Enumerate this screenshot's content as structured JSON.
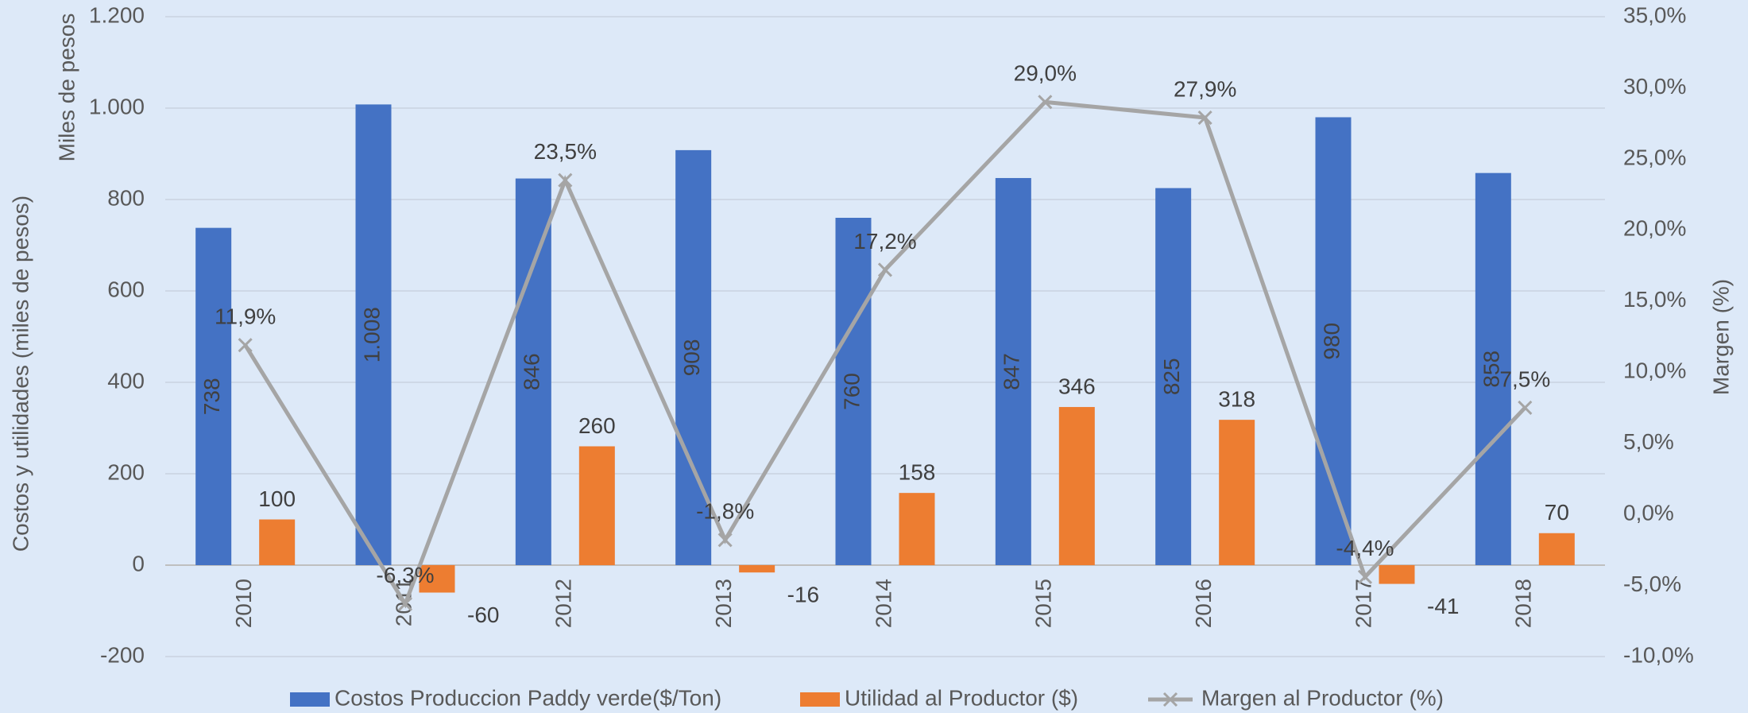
{
  "chart_data": {
    "type": "bar",
    "y_axis_title": "Costos y utilidades (miles de pesos)",
    "y_unit_title": "Miles de pesos",
    "y2_axis_title": "Margen (%)",
    "categories": [
      "2010",
      "2011",
      "2012",
      "2013",
      "2014",
      "2015",
      "2016",
      "2017",
      "2018"
    ],
    "series": [
      {
        "name": "Costos Produccion Paddy verde($/Ton)",
        "type": "bar",
        "color": "#4472c4",
        "values": [
          738,
          1008,
          846,
          908,
          760,
          847,
          825,
          980,
          858
        ],
        "value_labels": [
          "738",
          "1.008",
          "846",
          "908",
          "760",
          "847",
          "825",
          "980",
          "858"
        ]
      },
      {
        "name": "Utilidad al Productor ($)",
        "type": "bar",
        "color": "#ed7d31",
        "values": [
          100,
          -60,
          260,
          -16,
          158,
          346,
          318,
          -41,
          70
        ]
      },
      {
        "name": "Margen al Productor (%)",
        "type": "line",
        "axis": "y2",
        "color": "#a5a5a5",
        "values": [
          11.9,
          -6.3,
          23.5,
          -1.8,
          17.2,
          29.0,
          27.9,
          -4.4,
          7.5
        ],
        "value_labels": [
          "11,9%",
          "-6,3%",
          "23,5%",
          "-1,8%",
          "17,2%",
          "29,0%",
          "27,9%",
          "-4,4%",
          "7,5%"
        ]
      }
    ],
    "ylim": [
      -200,
      1200
    ],
    "yticks": [
      -200,
      0,
      200,
      400,
      600,
      800,
      {
        "value": 1000,
        "label": "1.000"
      },
      {
        "value": 1200,
        "label": "1.200"
      }
    ],
    "y2lim": [
      -10,
      35
    ],
    "y2ticks": [
      {
        "value": -10,
        "label": "-10,0%"
      },
      {
        "value": -5,
        "label": "-5,0%"
      },
      {
        "value": 0,
        "label": "0,0%"
      },
      {
        "value": 5,
        "label": "5,0%"
      },
      {
        "value": 10,
        "label": "10,0%"
      },
      {
        "value": 15,
        "label": "15,0%"
      },
      {
        "value": 20,
        "label": "20,0%"
      },
      {
        "value": 25,
        "label": "25,0%"
      },
      {
        "value": 30,
        "label": "30,0%"
      },
      {
        "value": 35,
        "label": "35,0%"
      }
    ],
    "grid": true,
    "legend": "bottom"
  }
}
